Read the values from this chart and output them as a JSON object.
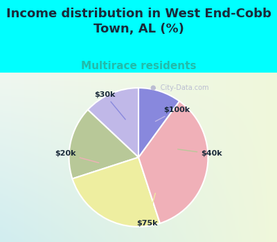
{
  "title": "Income distribution in West End-Cobb\nTown, AL (%)",
  "subtitle": "Multirace residents",
  "labels": [
    "$100k",
    "$40k",
    "$75k",
    "$20k",
    "$30k"
  ],
  "sizes": [
    13,
    17,
    25,
    35,
    10
  ],
  "colors": [
    "#c0b8e8",
    "#b8c898",
    "#eeeea0",
    "#f0b0b8",
    "#8888dd"
  ],
  "title_fontsize": 13,
  "subtitle_fontsize": 11,
  "subtitle_color": "#22bbaa",
  "title_color": "#1a2a3a",
  "bg_cyan": "#00ffff",
  "startangle": 90,
  "watermark": "City-Data.com"
}
